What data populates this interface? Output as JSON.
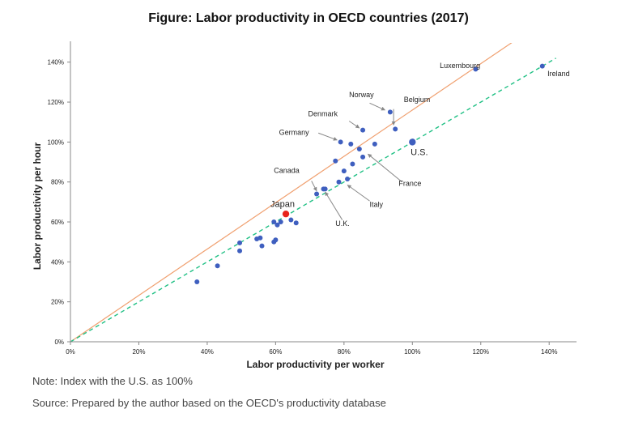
{
  "title": "Figure: Labor productivity in OECD countries (2017)",
  "notes": {
    "note": "Note: Index with the U.S. as 100%",
    "source": "Source: Prepared by the author based on the OECD's productivity database"
  },
  "chart_data": {
    "type": "scatter",
    "title": "Figure: Labor productivity in OECD countries (2017)",
    "xlabel": "Labor productivity per worker",
    "ylabel": "Labor productivity per hour",
    "xlim": [
      0,
      148
    ],
    "ylim": [
      0,
      148
    ],
    "x_ticks": [
      "0%",
      "20%",
      "40%",
      "60%",
      "80%",
      "100%",
      "120%",
      "140%"
    ],
    "y_ticks": [
      "0%",
      "20%",
      "40%",
      "60%",
      "80%",
      "100%",
      "120%",
      "140%"
    ],
    "grid": false,
    "series": [
      {
        "color": "#3f5fbf",
        "points": [
          {
            "x": 37,
            "y": 30
          },
          {
            "x": 43,
            "y": 38
          },
          {
            "x": 49.5,
            "y": 45.5
          },
          {
            "x": 49.5,
            "y": 49.5
          },
          {
            "x": 54.5,
            "y": 51.5
          },
          {
            "x": 55.5,
            "y": 52
          },
          {
            "x": 56,
            "y": 48
          },
          {
            "x": 59.5,
            "y": 50
          },
          {
            "x": 60,
            "y": 51
          },
          {
            "x": 59.5,
            "y": 60
          },
          {
            "x": 60.5,
            "y": 58.5
          },
          {
            "x": 61.5,
            "y": 60
          },
          {
            "x": 63,
            "y": 64
          },
          {
            "x": 64.5,
            "y": 61
          },
          {
            "x": 66,
            "y": 59.5
          },
          {
            "x": 72,
            "y": 74
          },
          {
            "x": 74,
            "y": 76.5
          },
          {
            "x": 74.5,
            "y": 76.5
          },
          {
            "x": 77.5,
            "y": 90.5
          },
          {
            "x": 78.5,
            "y": 80
          },
          {
            "x": 79,
            "y": 100
          },
          {
            "x": 80,
            "y": 85.5
          },
          {
            "x": 81,
            "y": 81.5
          },
          {
            "x": 82,
            "y": 99
          },
          {
            "x": 82.5,
            "y": 89
          },
          {
            "x": 84.5,
            "y": 96.5
          },
          {
            "x": 85.5,
            "y": 92.5
          },
          {
            "x": 85.5,
            "y": 106
          },
          {
            "x": 89,
            "y": 99
          },
          {
            "x": 93.5,
            "y": 115
          },
          {
            "x": 95,
            "y": 106.5
          },
          {
            "x": 118.5,
            "y": 136.5
          },
          {
            "x": 138,
            "y": 138
          }
        ]
      }
    ],
    "highlights": [
      {
        "name": "U.S.",
        "x": 100,
        "y": 100,
        "color": "#3f5fbf"
      },
      {
        "name": "Japan",
        "x": 63,
        "y": 64,
        "color": "#e8241c"
      }
    ],
    "labels": [
      {
        "text": "Luxembourg",
        "x": 108,
        "y": 137
      },
      {
        "text": "Ireland",
        "x": 139.5,
        "y": 133
      },
      {
        "text": "Norway",
        "x": 81.5,
        "y": 122.5
      },
      {
        "text": "Belgium",
        "x": 97.5,
        "y": 120
      },
      {
        "text": "Denmark",
        "x": 69.5,
        "y": 113
      },
      {
        "text": "Germany",
        "x": 61,
        "y": 103.5
      },
      {
        "text": "U.S.",
        "x": 99.5,
        "y": 93.5
      },
      {
        "text": "France",
        "x": 96,
        "y": 78
      },
      {
        "text": "Canada",
        "x": 59.5,
        "y": 84.5
      },
      {
        "text": "Japan",
        "x": 58.5,
        "y": 67.5
      },
      {
        "text": "Italy",
        "x": 87.5,
        "y": 67.5
      },
      {
        "text": "U.K.",
        "x": 77.5,
        "y": 58
      }
    ],
    "arrows": [
      {
        "from": [
          87.5,
          119.5
        ],
        "to": [
          92,
          116
        ]
      },
      {
        "from": [
          94.5,
          116.5
        ],
        "to": [
          94.5,
          108.5
        ]
      },
      {
        "from": [
          81.5,
          110.5
        ],
        "to": [
          84.5,
          107
        ]
      },
      {
        "from": [
          72.5,
          104.5
        ],
        "to": [
          78,
          101
        ]
      },
      {
        "from": [
          97,
          80
        ],
        "to": [
          87,
          94
        ]
      },
      {
        "from": [
          70.5,
          80.5
        ],
        "to": [
          72,
          75.5
        ]
      },
      {
        "from": [
          87.5,
          70.5
        ],
        "to": [
          81,
          78.5
        ]
      },
      {
        "from": [
          79.5,
          61
        ],
        "to": [
          74.5,
          75
        ]
      }
    ],
    "lines": [
      {
        "name": "",
        "style": "solid",
        "color": "#f0a070",
        "from": [
          0,
          0
        ],
        "to": [
          131,
          152
        ]
      },
      {
        "name": "",
        "style": "dashed",
        "color": "#1fc084",
        "from": [
          0,
          0
        ],
        "to": [
          142,
          142
        ]
      }
    ]
  }
}
